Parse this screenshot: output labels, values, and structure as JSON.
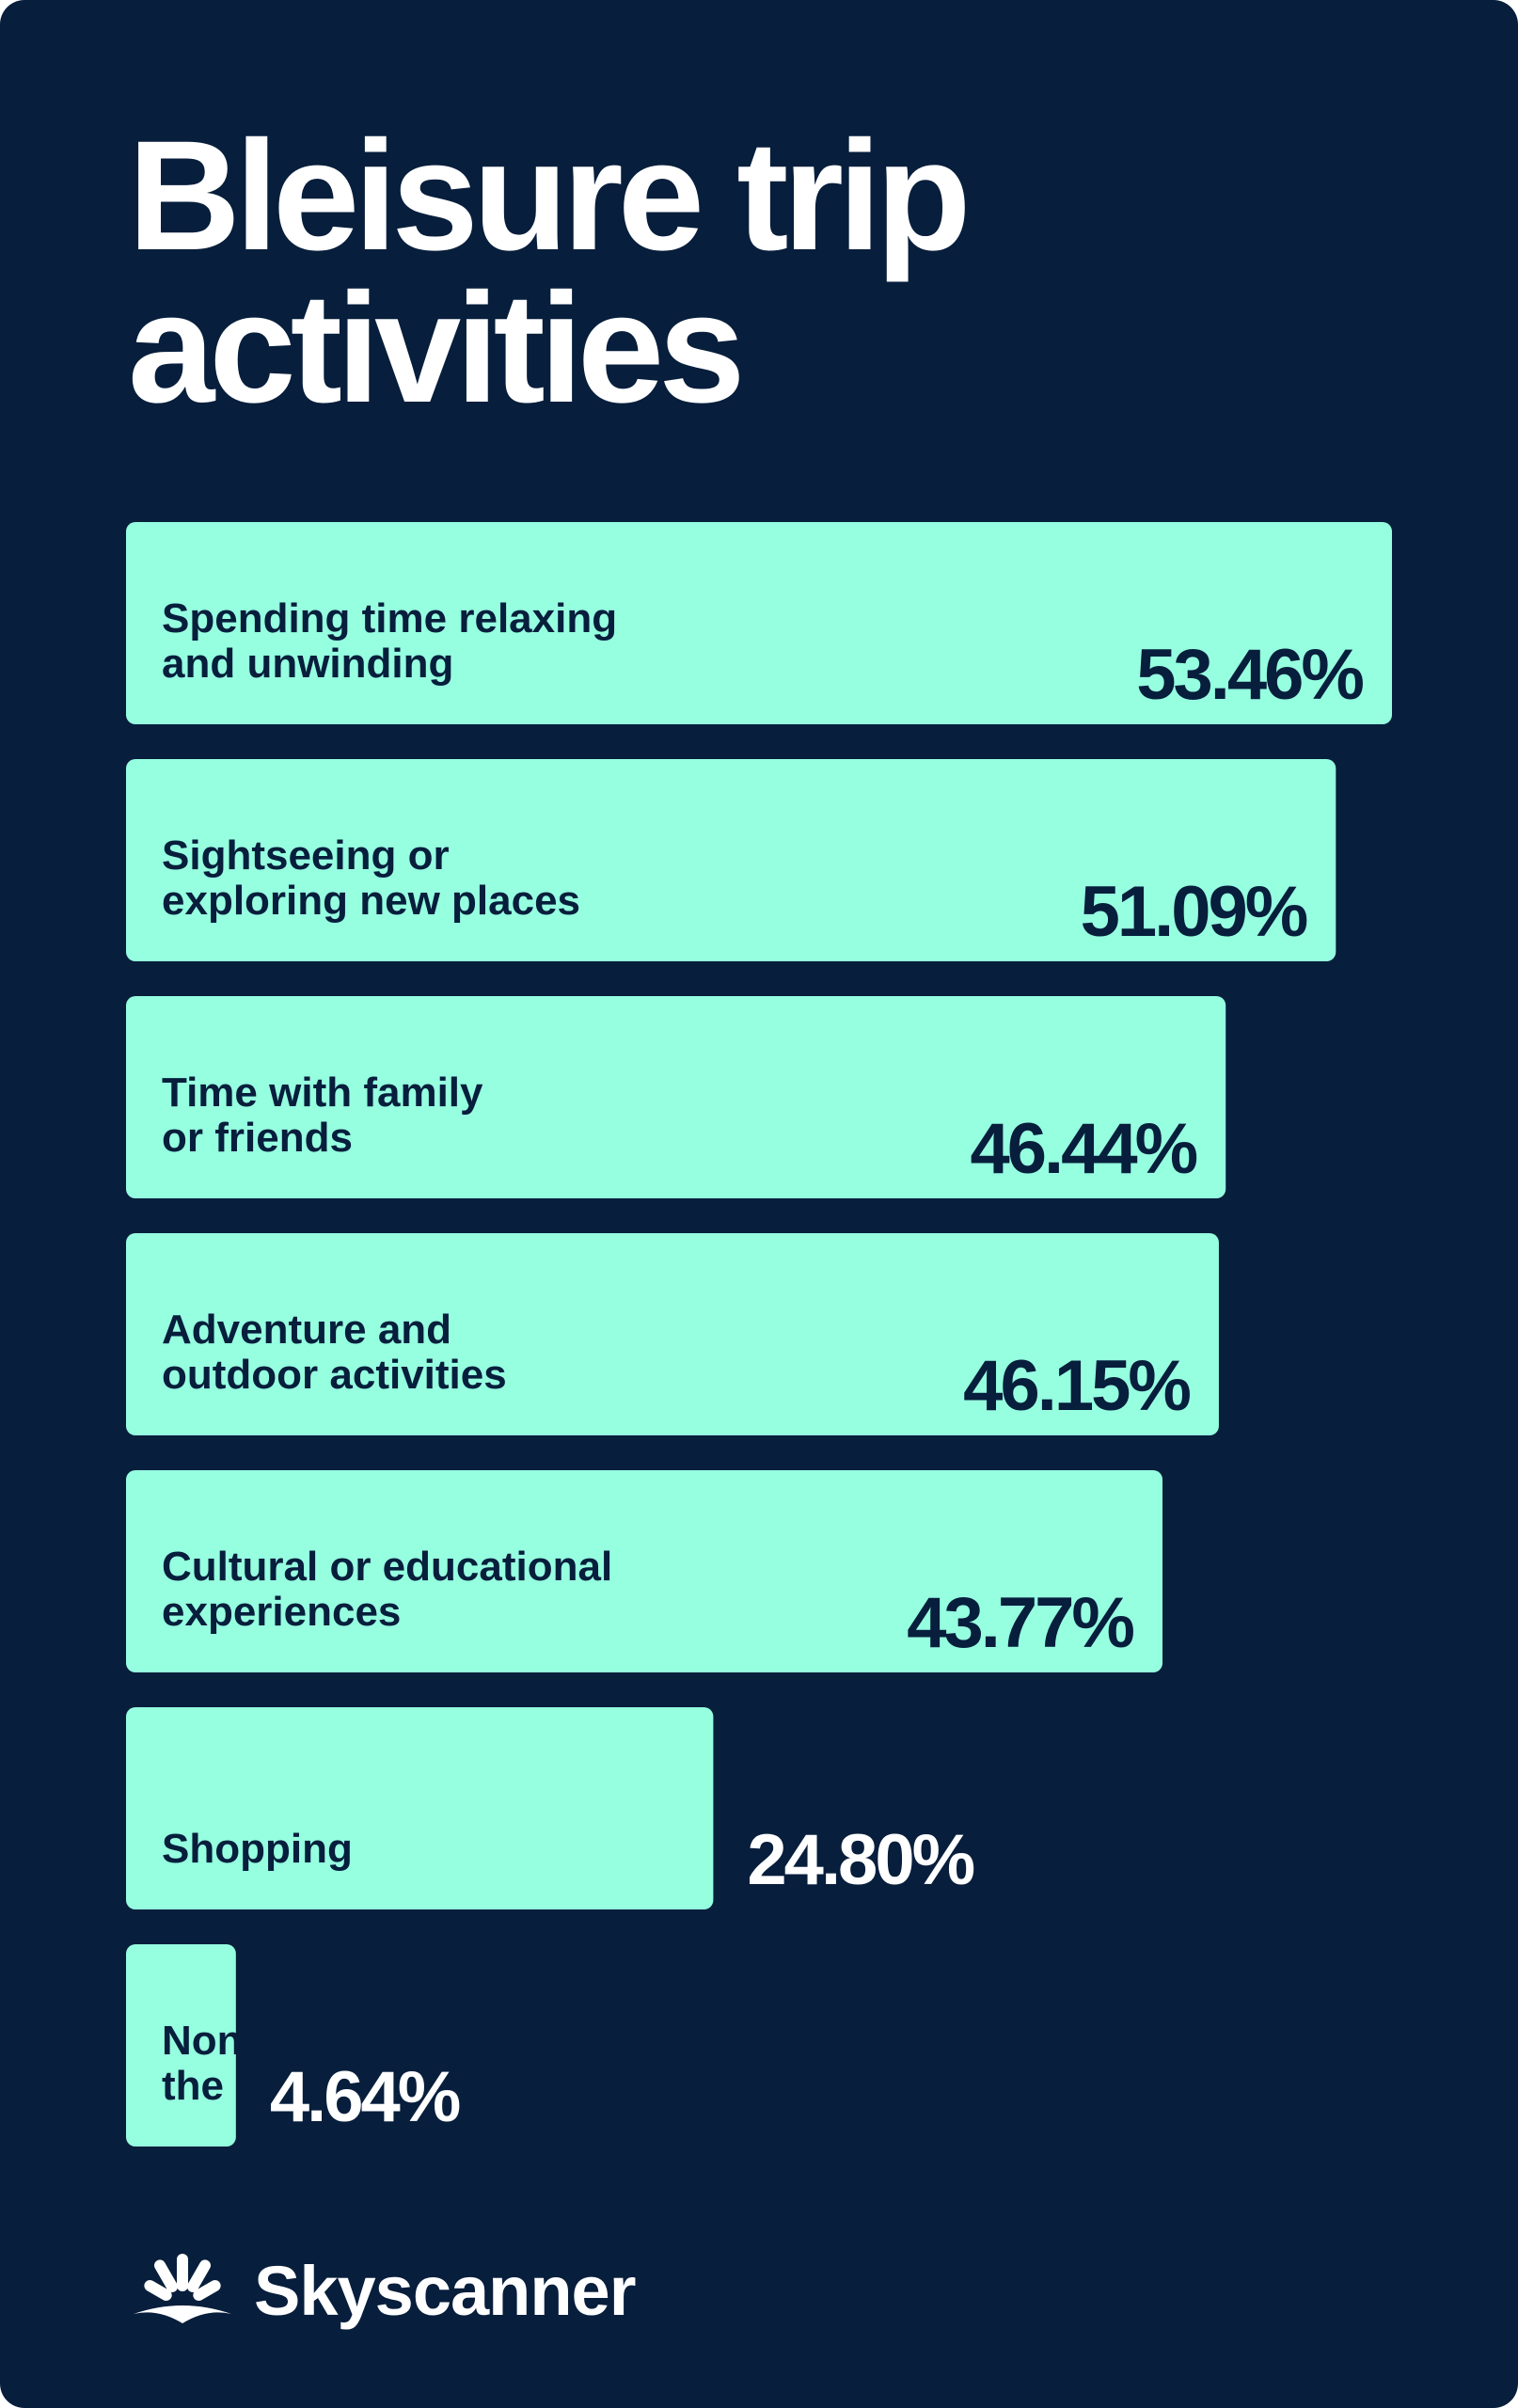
{
  "colors": {
    "background": "#071e3c",
    "bar": "#96ffe0",
    "text_dark": "#071e3c",
    "text_light": "#ffffff"
  },
  "title_lines": [
    "Bleisure trip",
    "activities"
  ],
  "chart_data": {
    "type": "bar",
    "orientation": "horizontal",
    "title": "Bleisure trip activities",
    "unit": "%",
    "xlim": [
      0,
      53.46
    ],
    "categories": [
      [
        "Spending time relaxing",
        "and unwinding"
      ],
      [
        "Sightseeing or",
        "exploring new places"
      ],
      [
        "Time with family",
        "or friends"
      ],
      [
        "Adventure and",
        "outdoor activities"
      ],
      [
        "Cultural or educational",
        "experiences"
      ],
      [
        "Shopping"
      ],
      [
        "None of",
        "the above"
      ]
    ],
    "values": [
      53.46,
      51.09,
      46.44,
      46.15,
      43.77,
      24.8,
      4.64
    ],
    "value_labels": [
      "53.46%",
      "51.09%",
      "46.44%",
      "46.15%",
      "43.77%",
      "24.80%",
      "4.64%"
    ]
  },
  "logo": {
    "text": "Skyscanner",
    "icon": "sunrise-icon"
  }
}
